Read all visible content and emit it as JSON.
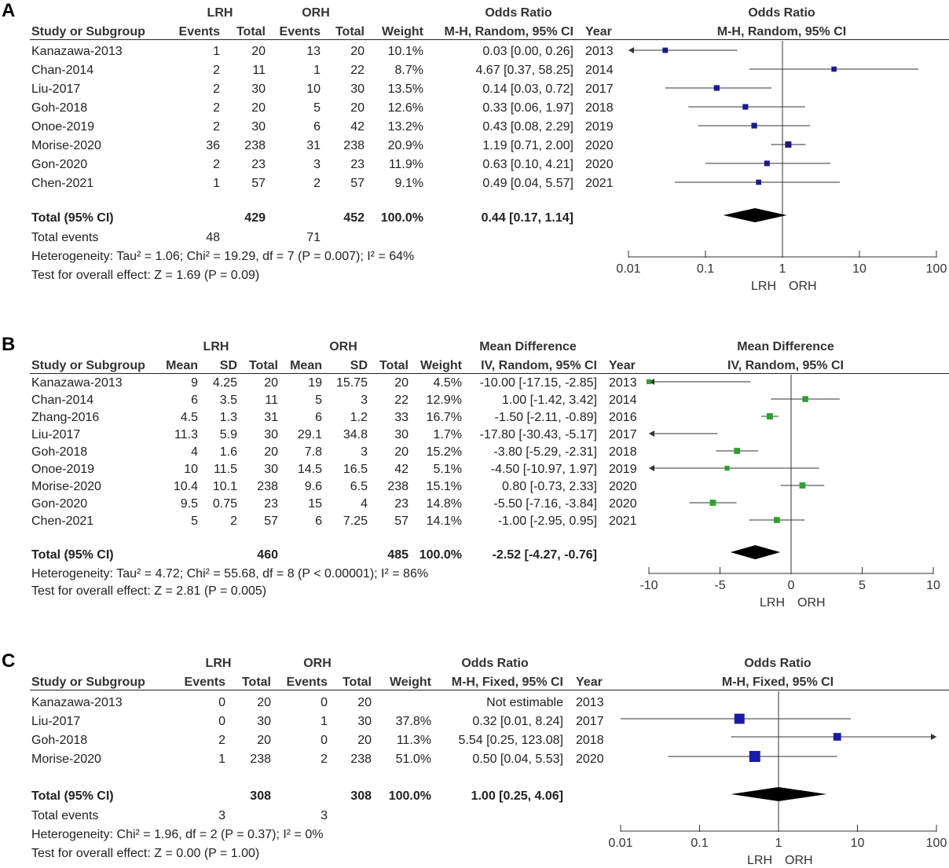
{
  "panels": [
    {
      "label": "A",
      "headers": {
        "group1": "LRH",
        "group2": "ORH",
        "study": "Study or Subgroup",
        "cols": [
          "Events",
          "Total",
          "Events",
          "Total",
          "Weight"
        ],
        "effect_title": "Odds Ratio",
        "effect_method": "M-H, Random, 95% CI",
        "year": "Year",
        "plot_title": "Odds Ratio",
        "plot_method": "M-H, Random, 95% CI"
      },
      "rows": [
        {
          "study": "Kanazawa-2013",
          "cells": [
            "1",
            "20",
            "13",
            "20",
            "10.1%"
          ],
          "ci": "0.03 [0.00, 0.26]",
          "year": "2013"
        },
        {
          "study": "Chan-2014",
          "cells": [
            "2",
            "11",
            "1",
            "22",
            "8.7%"
          ],
          "ci": "4.67 [0.37, 58.25]",
          "year": "2014"
        },
        {
          "study": "Liu-2017",
          "cells": [
            "2",
            "30",
            "10",
            "30",
            "13.5%"
          ],
          "ci": "0.14 [0.03, 0.72]",
          "year": "2017"
        },
        {
          "study": "Goh-2018",
          "cells": [
            "2",
            "20",
            "5",
            "20",
            "12.6%"
          ],
          "ci": "0.33 [0.06, 1.97]",
          "year": "2018"
        },
        {
          "study": "Onoe-2019",
          "cells": [
            "2",
            "30",
            "6",
            "42",
            "13.2%"
          ],
          "ci": "0.43 [0.08, 2.29]",
          "year": "2019"
        },
        {
          "study": "Morise-2020",
          "cells": [
            "36",
            "238",
            "31",
            "238",
            "20.9%"
          ],
          "ci": "1.19 [0.71, 2.00]",
          "year": "2020"
        },
        {
          "study": "Gon-2020",
          "cells": [
            "2",
            "23",
            "3",
            "23",
            "11.9%"
          ],
          "ci": "0.63 [0.10, 4.21]",
          "year": "2020"
        },
        {
          "study": "Chen-2021",
          "cells": [
            "1",
            "57",
            "2",
            "57",
            "9.1%"
          ],
          "ci": "0.49 [0.04, 5.57]",
          "year": "2021"
        }
      ],
      "total": {
        "label": "Total (95% CI)",
        "cells": [
          "",
          "429",
          "",
          "452",
          "100.0%"
        ],
        "ci": "0.44 [0.17, 1.14]"
      },
      "events": {
        "label": "Total events",
        "cells": [
          "48",
          "",
          "71",
          "",
          ""
        ]
      },
      "footer": [
        "Heterogeneity: Tau² = 1.06; Chi² = 19.29, df = 7 (P = 0.007); I² = 64%",
        "Test for overall effect: Z = 1.69 (P = 0.09)"
      ],
      "favours": [
        "LRH",
        "ORH"
      ],
      "chart_data": {
        "type": "forest",
        "scale": "log",
        "xlim": [
          0.01,
          100
        ],
        "ticks": [
          0.01,
          0.1,
          1,
          10,
          100
        ],
        "tick_labels": [
          "0.01",
          "0.1",
          "1",
          "10",
          "100"
        ],
        "null_value": 1,
        "marker_color": "#1a1a8c",
        "studies": [
          {
            "name": "Kanazawa-2013",
            "est": 0.03,
            "lo": 0.0,
            "hi": 0.26,
            "weight": 10.1
          },
          {
            "name": "Chan-2014",
            "est": 4.67,
            "lo": 0.37,
            "hi": 58.25,
            "weight": 8.7
          },
          {
            "name": "Liu-2017",
            "est": 0.14,
            "lo": 0.03,
            "hi": 0.72,
            "weight": 13.5
          },
          {
            "name": "Goh-2018",
            "est": 0.33,
            "lo": 0.06,
            "hi": 1.97,
            "weight": 12.6
          },
          {
            "name": "Onoe-2019",
            "est": 0.43,
            "lo": 0.08,
            "hi": 2.29,
            "weight": 13.2
          },
          {
            "name": "Morise-2020",
            "est": 1.19,
            "lo": 0.71,
            "hi": 2.0,
            "weight": 20.9
          },
          {
            "name": "Gon-2020",
            "est": 0.63,
            "lo": 0.1,
            "hi": 4.21,
            "weight": 11.9
          },
          {
            "name": "Chen-2021",
            "est": 0.49,
            "lo": 0.04,
            "hi": 5.57,
            "weight": 9.1
          }
        ],
        "total": {
          "est": 0.44,
          "lo": 0.17,
          "hi": 1.14
        }
      }
    },
    {
      "label": "B",
      "headers": {
        "group1": "LRH",
        "group2": "ORH",
        "study": "Study or Subgroup",
        "cols": [
          "Mean",
          "SD",
          "Total",
          "Mean",
          "SD",
          "Total",
          "Weight"
        ],
        "effect_title": "Mean Difference",
        "effect_method": "IV, Random, 95% CI",
        "year": "Year",
        "plot_title": "Mean Difference",
        "plot_method": "IV, Random, 95% CI"
      },
      "rows": [
        {
          "study": "Kanazawa-2013",
          "cells": [
            "9",
            "4.25",
            "20",
            "19",
            "15.75",
            "20",
            "4.5%"
          ],
          "ci": "-10.00 [-17.15, -2.85]",
          "year": "2013"
        },
        {
          "study": "Chan-2014",
          "cells": [
            "6",
            "3.5",
            "11",
            "5",
            "3",
            "22",
            "12.9%"
          ],
          "ci": "1.00 [-1.42, 3.42]",
          "year": "2014"
        },
        {
          "study": "Zhang-2016",
          "cells": [
            "4.5",
            "1.3",
            "31",
            "6",
            "1.2",
            "33",
            "16.7%"
          ],
          "ci": "-1.50 [-2.11, -0.89]",
          "year": "2016"
        },
        {
          "study": "Liu-2017",
          "cells": [
            "11.3",
            "5.9",
            "30",
            "29.1",
            "34.8",
            "30",
            "1.7%"
          ],
          "ci": "-17.80 [-30.43, -5.17]",
          "year": "2017"
        },
        {
          "study": "Goh-2018",
          "cells": [
            "4",
            "1.6",
            "20",
            "7.8",
            "3",
            "20",
            "15.2%"
          ],
          "ci": "-3.80 [-5.29, -2.31]",
          "year": "2018"
        },
        {
          "study": "Onoe-2019",
          "cells": [
            "10",
            "11.5",
            "30",
            "14.5",
            "16.5",
            "42",
            "5.1%"
          ],
          "ci": "-4.50 [-10.97, 1.97]",
          "year": "2019"
        },
        {
          "study": "Morise-2020",
          "cells": [
            "10.4",
            "10.1",
            "238",
            "9.6",
            "6.5",
            "238",
            "15.1%"
          ],
          "ci": "0.80 [-0.73, 2.33]",
          "year": "2020"
        },
        {
          "study": "Gon-2020",
          "cells": [
            "9.5",
            "0.75",
            "23",
            "15",
            "4",
            "23",
            "14.8%"
          ],
          "ci": "-5.50 [-7.16, -3.84]",
          "year": "2020"
        },
        {
          "study": "Chen-2021",
          "cells": [
            "5",
            "2",
            "57",
            "6",
            "7.25",
            "57",
            "14.1%"
          ],
          "ci": "-1.00 [-2.95, 0.95]",
          "year": "2021"
        }
      ],
      "total": {
        "label": "Total (95% CI)",
        "cells": [
          "",
          "",
          "460",
          "",
          "",
          "485",
          "100.0%"
        ],
        "ci": "-2.52 [-4.27, -0.76]"
      },
      "footer": [
        "Heterogeneity: Tau² = 4.72; Chi² = 55.68, df = 8 (P < 0.00001); I² = 86%",
        "Test for overall effect: Z = 2.81 (P = 0.005)"
      ],
      "favours": [
        "LRH",
        "ORH"
      ],
      "chart_data": {
        "type": "forest",
        "scale": "linear",
        "xlim": [
          -10,
          10
        ],
        "ticks": [
          -10,
          -5,
          0,
          5,
          10
        ],
        "tick_labels": [
          "-10",
          "-5",
          "0",
          "5",
          "10"
        ],
        "null_value": 0,
        "marker_color": "#2fa02f",
        "studies": [
          {
            "name": "Kanazawa-2013",
            "est": -10.0,
            "lo": -17.15,
            "hi": -2.85,
            "weight": 4.5
          },
          {
            "name": "Chan-2014",
            "est": 1.0,
            "lo": -1.42,
            "hi": 3.42,
            "weight": 12.9
          },
          {
            "name": "Zhang-2016",
            "est": -1.5,
            "lo": -2.11,
            "hi": -0.89,
            "weight": 16.7
          },
          {
            "name": "Liu-2017",
            "est": -17.8,
            "lo": -30.43,
            "hi": -5.17,
            "weight": 1.7
          },
          {
            "name": "Goh-2018",
            "est": -3.8,
            "lo": -5.29,
            "hi": -2.31,
            "weight": 15.2
          },
          {
            "name": "Onoe-2019",
            "est": -4.5,
            "lo": -10.97,
            "hi": 1.97,
            "weight": 5.1
          },
          {
            "name": "Morise-2020",
            "est": 0.8,
            "lo": -0.73,
            "hi": 2.33,
            "weight": 15.1
          },
          {
            "name": "Gon-2020",
            "est": -5.5,
            "lo": -7.16,
            "hi": -3.84,
            "weight": 14.8
          },
          {
            "name": "Chen-2021",
            "est": -1.0,
            "lo": -2.95,
            "hi": 0.95,
            "weight": 14.1
          }
        ],
        "total": {
          "est": -2.52,
          "lo": -4.27,
          "hi": -0.76
        }
      }
    },
    {
      "label": "C",
      "headers": {
        "group1": "LRH",
        "group2": "ORH",
        "study": "Study or Subgroup",
        "cols": [
          "Events",
          "Total",
          "Events",
          "Total",
          "Weight"
        ],
        "effect_title": "Odds Ratio",
        "effect_method": "M-H, Fixed, 95% CI",
        "year": "Year",
        "plot_title": "Odds Ratio",
        "plot_method": "M-H, Fixed, 95% CI"
      },
      "rows": [
        {
          "study": "Kanazawa-2013",
          "cells": [
            "0",
            "20",
            "0",
            "20",
            ""
          ],
          "ci": "Not estimable",
          "year": "2013"
        },
        {
          "study": "Liu-2017",
          "cells": [
            "0",
            "30",
            "1",
            "30",
            "37.8%"
          ],
          "ci": "0.32 [0.01, 8.24]",
          "year": "2017"
        },
        {
          "study": "Goh-2018",
          "cells": [
            "2",
            "20",
            "0",
            "20",
            "11.3%"
          ],
          "ci": "5.54 [0.25, 123.08]",
          "year": "2018"
        },
        {
          "study": "Morise-2020",
          "cells": [
            "1",
            "238",
            "2",
            "238",
            "51.0%"
          ],
          "ci": "0.50 [0.04, 5.53]",
          "year": "2020"
        }
      ],
      "total": {
        "label": "Total (95% CI)",
        "cells": [
          "",
          "308",
          "",
          "308",
          "100.0%"
        ],
        "ci": "1.00 [0.25, 4.06]"
      },
      "events": {
        "label": "Total events",
        "cells": [
          "3",
          "",
          "3",
          "",
          ""
        ]
      },
      "footer": [
        "Heterogeneity: Chi² = 1.96, df = 2 (P = 0.37); I² = 0%",
        "Test for overall effect: Z = 0.00 (P = 1.00)"
      ],
      "favours": [
        "LRH",
        "ORH"
      ],
      "chart_data": {
        "type": "forest",
        "scale": "log",
        "xlim": [
          0.01,
          100
        ],
        "ticks": [
          0.01,
          0.1,
          1,
          10,
          100
        ],
        "tick_labels": [
          "0.01",
          "0.1",
          "1",
          "10",
          "100"
        ],
        "null_value": 1,
        "marker_color": "#1a1aa8",
        "studies": [
          {
            "name": "Kanazawa-2013",
            "est": null,
            "lo": null,
            "hi": null,
            "weight": 0
          },
          {
            "name": "Liu-2017",
            "est": 0.32,
            "lo": 0.01,
            "hi": 8.24,
            "weight": 37.8
          },
          {
            "name": "Goh-2018",
            "est": 5.54,
            "lo": 0.25,
            "hi": 123.08,
            "weight": 11.3
          },
          {
            "name": "Morise-2020",
            "est": 0.5,
            "lo": 0.04,
            "hi": 5.53,
            "weight": 51.0
          }
        ],
        "total": {
          "est": 1.0,
          "lo": 0.25,
          "hi": 4.06
        }
      }
    }
  ]
}
